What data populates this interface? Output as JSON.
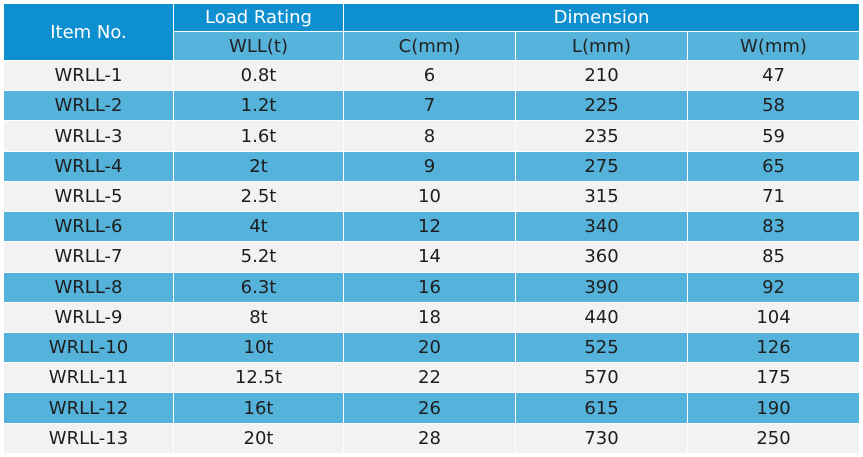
{
  "headers": {
    "item_no": "Item No.",
    "load_rating": "Load Rating",
    "dimension": "Dimension",
    "wll": "WLL(t)",
    "c": "C(mm)",
    "l": "L(mm)",
    "w": "W(mm)"
  },
  "rows": [
    {
      "item": "WRLL-1",
      "wll": "0.8t",
      "c": "6",
      "l": "210",
      "w": "47"
    },
    {
      "item": "WRLL-2",
      "wll": "1.2t",
      "c": "7",
      "l": "225",
      "w": "58"
    },
    {
      "item": "WRLL-3",
      "wll": "1.6t",
      "c": "8",
      "l": "235",
      "w": "59"
    },
    {
      "item": "WRLL-4",
      "wll": "2t",
      "c": "9",
      "l": "275",
      "w": "65"
    },
    {
      "item": "WRLL-5",
      "wll": "2.5t",
      "c": "10",
      "l": "315",
      "w": "71"
    },
    {
      "item": "WRLL-6",
      "wll": "4t",
      "c": "12",
      "l": "340",
      "w": "83"
    },
    {
      "item": "WRLL-7",
      "wll": "5.2t",
      "c": "14",
      "l": "360",
      "w": "85"
    },
    {
      "item": "WRLL-8",
      "wll": "6.3t",
      "c": "16",
      "l": "390",
      "w": "92"
    },
    {
      "item": "WRLL-9",
      "wll": "8t",
      "c": "18",
      "l": "440",
      "w": "104"
    },
    {
      "item": "WRLL-10",
      "wll": "10t",
      "c": "20",
      "l": "525",
      "w": "126"
    },
    {
      "item": "WRLL-11",
      "wll": "12.5t",
      "c": "22",
      "l": "570",
      "w": "175"
    },
    {
      "item": "WRLL-12",
      "wll": "16t",
      "c": "26",
      "l": "615",
      "w": "190"
    },
    {
      "item": "WRLL-13",
      "wll": "20t",
      "c": "28",
      "l": "730",
      "w": "250"
    }
  ],
  "colors": {
    "header": "#0e8fcf",
    "subheader": "#56b4dc",
    "row_light": "#f2f2f2",
    "row_blue": "#55b2da"
  }
}
